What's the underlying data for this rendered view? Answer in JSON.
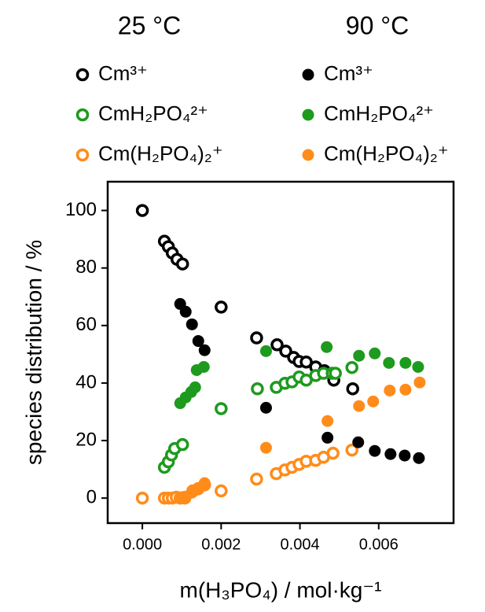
{
  "chart_data": {
    "type": "scatter",
    "xlabel": "m(H₃PO₄) / mol·kg⁻¹",
    "ylabel": "species distribution / %",
    "xlim": [
      -0.00088,
      0.0079
    ],
    "ylim": [
      -8.7,
      110
    ],
    "xticks": [
      {
        "value": 0,
        "label": "0.000"
      },
      {
        "value": 0.002,
        "label": "0.002"
      },
      {
        "value": 0.004,
        "label": "0.004"
      },
      {
        "value": 0.006,
        "label": "0.006"
      }
    ],
    "yticks": [
      0,
      20,
      40,
      60,
      80,
      100
    ],
    "groups": [
      {
        "title": "25 °C",
        "filled": false,
        "series": [
          {
            "name": "Cm³⁺",
            "color": "#000000",
            "x": [
              0,
              0.00056,
              0.00066,
              0.00076,
              0.00088,
              0.00102,
              0.002,
              0.0029,
              0.00342,
              0.00364,
              0.00384,
              0.00398,
              0.00416,
              0.0044,
              0.00462,
              0.00486,
              0.00534
            ],
            "values": [
              100,
              89.3,
              87.4,
              85.2,
              83,
              81.4,
              66.4,
              55.7,
              53.3,
              51.1,
              48.9,
              47.5,
              47.3,
              45.6,
              44.3,
              41,
              38
            ]
          },
          {
            "name": "CmH₂PO₄²⁺",
            "color": "#1e9a1e",
            "x": [
              0.00056,
              0.00066,
              0.00074,
              0.00082,
              0.00102,
              0.002,
              0.00292,
              0.0034,
              0.00362,
              0.0038,
              0.00398,
              0.00416,
              0.0044,
              0.0046,
              0.00482,
              0.0049,
              0.00532
            ],
            "values": [
              10.7,
              12.6,
              15,
              17.2,
              18.6,
              31.1,
              38,
              38.5,
              39.9,
              40.4,
              42.1,
              41,
              42.6,
              43.4,
              43.4,
              43.4,
              45.4
            ]
          },
          {
            "name": "Cm(H₂PO₄)₂⁺",
            "color": "#ff8c1a",
            "x": [
              0,
              0.00056,
              0.00066,
              0.00076,
              0.00086,
              0.00096,
              0.00108,
              0.00128,
              0.00142,
              0.00158,
              0.002,
              0.0029,
              0.0034,
              0.00362,
              0.0038,
              0.00398,
              0.00416,
              0.0044,
              0.0046,
              0.00484,
              0.00532
            ],
            "values": [
              0,
              0,
              0,
              0,
              0.3,
              0,
              0,
              2.5,
              3.3,
              4.6,
              2.5,
              6.6,
              8.5,
              9.8,
              10.7,
              11.7,
              12.8,
              13.1,
              14.2,
              15.6,
              16.7
            ]
          }
        ]
      },
      {
        "title": "90 °C",
        "filled": true,
        "series": [
          {
            "name": "Cm³⁺",
            "color": "#000000",
            "x": [
              0.00096,
              0.0011,
              0.00126,
              0.00142,
              0.00158,
              0.00314,
              0.0047,
              0.00548,
              0.0059,
              0.0063,
              0.00666,
              0.00702
            ],
            "values": [
              67.5,
              64.8,
              60.4,
              54.6,
              51.4,
              31.4,
              21,
              19.4,
              16.4,
              15.3,
              14.8,
              13.9
            ]
          },
          {
            "name": "CmH₂PO₄²⁺",
            "color": "#1e9a1e",
            "x": [
              0.00096,
              0.0011,
              0.00124,
              0.00134,
              0.00138,
              0.00156,
              0.00314,
              0.00468,
              0.0055,
              0.0059,
              0.00626,
              0.00668,
              0.007
            ],
            "values": [
              33,
              35,
              36.9,
              38.5,
              44.5,
              45.6,
              51.1,
              52.5,
              49.5,
              50.3,
              47,
              47,
              45.6
            ]
          },
          {
            "name": "Cm(H₂PO₄)₂⁺",
            "color": "#ff8c1a",
            "x": [
              0.00096,
              0.00108,
              0.00126,
              0.00142,
              0.00158,
              0.00314,
              0.0047,
              0.0055,
              0.00586,
              0.00628,
              0.00668,
              0.00704
            ],
            "values": [
              0.3,
              0.5,
              1.9,
              3,
              5.2,
              17.5,
              26.8,
              32,
              33.6,
              37.4,
              37.7,
              40.2
            ]
          }
        ]
      }
    ]
  }
}
